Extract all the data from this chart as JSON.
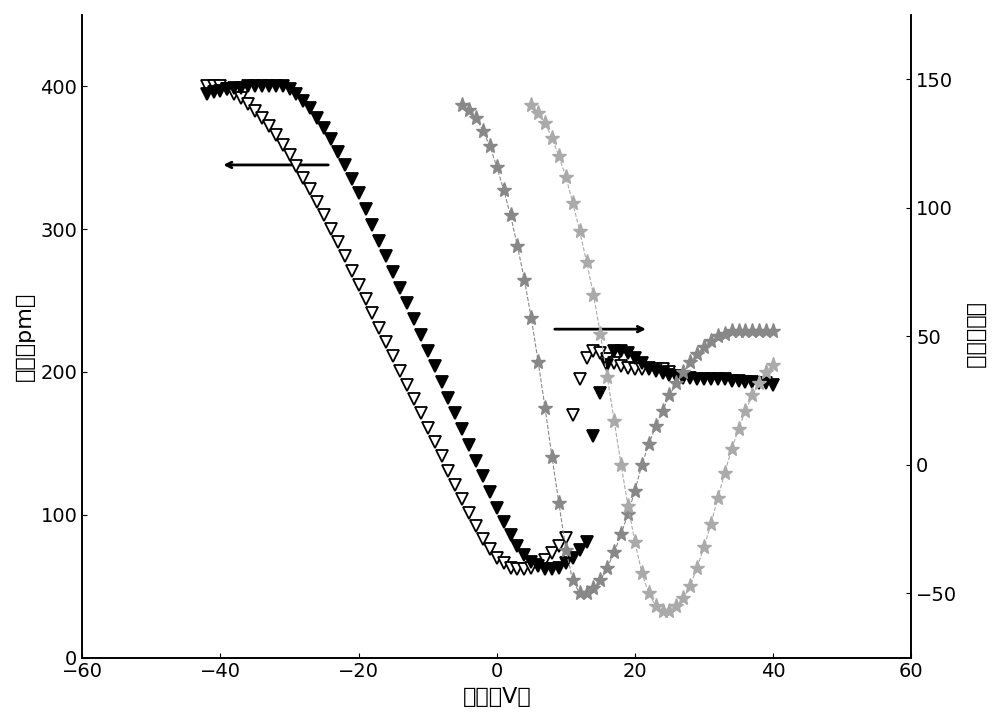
{
  "title": "",
  "xlabel": "电压（V）",
  "ylabel_left": "振幅（pm）",
  "ylabel_right": "相位（度）",
  "xlim": [
    -60,
    60
  ],
  "ylim_left": [
    0,
    450
  ],
  "ylim_right": [
    -75,
    175
  ],
  "yticks_left": [
    0,
    100,
    200,
    300,
    400
  ],
  "yticks_right": [
    -50,
    0,
    50,
    100,
    150
  ],
  "xticks": [
    -60,
    -40,
    -20,
    0,
    20,
    40,
    60
  ],
  "amp_curve1_x": [
    -42,
    -41,
    -40,
    -39,
    -38,
    -37,
    -36,
    -35,
    -34,
    -33,
    -32,
    -31,
    -30,
    -29,
    -28,
    -27,
    -26,
    -25,
    -24,
    -23,
    -22,
    -21,
    -20,
    -19,
    -18,
    -17,
    -16,
    -15,
    -14,
    -13,
    -12,
    -11,
    -10,
    -9,
    -8,
    -7,
    -6,
    -5,
    -4,
    -3,
    -2,
    -1,
    0,
    1,
    2,
    3,
    4,
    5,
    6,
    7,
    8,
    9,
    10,
    11,
    12,
    13,
    14,
    15,
    16,
    17,
    18,
    19,
    20,
    21,
    22,
    23,
    24,
    25
  ],
  "amp_curve1_y": [
    400,
    400,
    400,
    398,
    395,
    392,
    388,
    383,
    378,
    372,
    366,
    359,
    352,
    344,
    336,
    328,
    319,
    310,
    300,
    291,
    281,
    271,
    261,
    251,
    241,
    231,
    221,
    211,
    201,
    191,
    181,
    171,
    161,
    151,
    141,
    131,
    121,
    111,
    101,
    92,
    83,
    76,
    70,
    66,
    63,
    62,
    62,
    63,
    65,
    68,
    73,
    78,
    84,
    170,
    195,
    210,
    215,
    213,
    209,
    206,
    204,
    203,
    202,
    202,
    202,
    202,
    202,
    200
  ],
  "amp_curve2_x": [
    -42,
    -41,
    -40,
    -39,
    -38,
    -37,
    -36,
    -35,
    -34,
    -33,
    -32,
    -31,
    -30,
    -29,
    -28,
    -27,
    -26,
    -25,
    -24,
    -23,
    -22,
    -21,
    -20,
    -19,
    -18,
    -17,
    -16,
    -15,
    -14,
    -13,
    -12,
    -11,
    -10,
    -9,
    -8,
    -7,
    -6,
    -5,
    -4,
    -3,
    -2,
    -1,
    0,
    1,
    2,
    3,
    4,
    5,
    6,
    7,
    8,
    9,
    10,
    11,
    12,
    13,
    14,
    15,
    16,
    17,
    18,
    19,
    20,
    21,
    22,
    23,
    24,
    25,
    26,
    27,
    28,
    29,
    30,
    31,
    32,
    33,
    34,
    35,
    36,
    37,
    38,
    39,
    40
  ],
  "amp_curve2_y": [
    395,
    396,
    397,
    398,
    399,
    399,
    400,
    400,
    400,
    400,
    400,
    400,
    398,
    395,
    390,
    385,
    378,
    371,
    363,
    354,
    345,
    335,
    325,
    314,
    303,
    292,
    281,
    270,
    259,
    248,
    237,
    226,
    215,
    204,
    193,
    182,
    171,
    160,
    149,
    138,
    127,
    116,
    105,
    95,
    86,
    78,
    72,
    67,
    64,
    62,
    62,
    63,
    66,
    70,
    75,
    81,
    155,
    185,
    205,
    215,
    215,
    213,
    210,
    206,
    203,
    201,
    199,
    198,
    197,
    196,
    196,
    195,
    195,
    195,
    195,
    195,
    194,
    194,
    193,
    193,
    192,
    192,
    191
  ],
  "phase_curve1_x": [
    -5,
    -4,
    -3,
    -2,
    -1,
    0,
    1,
    2,
    3,
    4,
    5,
    6,
    7,
    8,
    9,
    10,
    11,
    12,
    13,
    14,
    15,
    16,
    17,
    18,
    19,
    20,
    21,
    22,
    23,
    24,
    25,
    26,
    27,
    28,
    29,
    30,
    31,
    32,
    33,
    34,
    35,
    36,
    37,
    38,
    39,
    40
  ],
  "phase_curve1_y": [
    140,
    138,
    135,
    130,
    124,
    116,
    107,
    97,
    85,
    72,
    57,
    40,
    22,
    3,
    -15,
    -33,
    -45,
    -50,
    -50,
    -48,
    -45,
    -40,
    -34,
    -27,
    -19,
    -10,
    0,
    8,
    15,
    21,
    27,
    32,
    36,
    40,
    43,
    46,
    48,
    50,
    51,
    52,
    52,
    52,
    52,
    52,
    52,
    52
  ],
  "phase_curve2_x": [
    5,
    6,
    7,
    8,
    9,
    10,
    11,
    12,
    13,
    14,
    15,
    16,
    17,
    18,
    19,
    20,
    21,
    22,
    23,
    24,
    25,
    26,
    27,
    28,
    29,
    30,
    31,
    32,
    33,
    34,
    35,
    36,
    37,
    38,
    39,
    40
  ],
  "phase_curve2_y": [
    140,
    137,
    133,
    127,
    120,
    112,
    102,
    91,
    79,
    66,
    51,
    34,
    17,
    0,
    -16,
    -30,
    -42,
    -50,
    -55,
    -57,
    -57,
    -55,
    -52,
    -47,
    -40,
    -32,
    -23,
    -13,
    -3,
    6,
    14,
    21,
    27,
    32,
    36,
    39
  ],
  "color_black": "#000000",
  "color_gray_dark": "#888888",
  "color_gray_light": "#aaaaaa",
  "fontsize_label": 16,
  "fontsize_tick": 14
}
